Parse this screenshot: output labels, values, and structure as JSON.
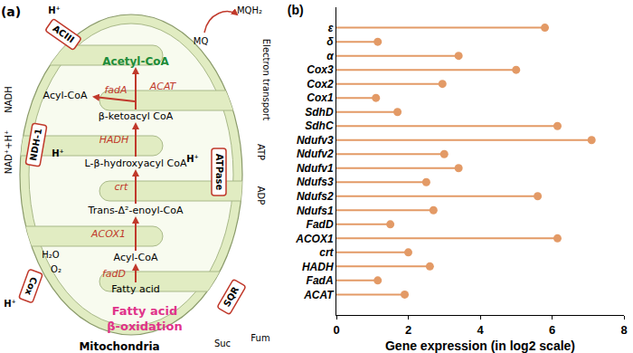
{
  "chart_data": {
    "type": "lollipop",
    "orientation": "horizontal",
    "title": "(b)",
    "x_label": "Gene expression (in log2 scale)",
    "categories": [
      "ε",
      "δ",
      "α",
      "Cox3",
      "Cox2",
      "Cox1",
      "SdhD",
      "SdhC",
      "Ndufv3",
      "Ndufv2",
      "Ndufv1",
      "Ndufs3",
      "Ndufs2",
      "Ndufs1",
      "FadD",
      "ACOX1",
      "crt",
      "HADH",
      "FadA",
      "ACAT"
    ],
    "values": [
      5.8,
      1.15,
      3.4,
      5.0,
      2.95,
      1.1,
      1.7,
      6.15,
      7.1,
      3.0,
      3.4,
      2.5,
      5.6,
      2.7,
      1.5,
      6.15,
      2.0,
      2.6,
      1.15,
      1.9
    ],
    "color": "#e39a66",
    "xlim": [
      0,
      8
    ],
    "xticks": [
      0,
      2,
      4,
      6,
      8
    ],
    "grid": false
  },
  "diagram": {
    "panel_label": "(a)",
    "organelle": "Mitochondria",
    "process": [
      "Fatty acid",
      "β-oxidation"
    ],
    "metabolites": [
      "Fatty acid",
      "Acyl-CoA",
      "Trans-Δ²-enoyl-CoA",
      "L-β-hydroxyacyl CoA",
      "β-ketoacyl CoA",
      "Acyl-CoA",
      "Acetyl-CoA"
    ],
    "enzymes": [
      "fadD",
      "ACOX1",
      "crt",
      "HADH",
      "fadA",
      "ACAT"
    ],
    "complexes": [
      {
        "name": "NDH-1",
        "substrate": "NADH",
        "product": "NAD⁺+H⁺",
        "ion": "H⁺"
      },
      {
        "name": "ACIII",
        "ion": "H⁺"
      },
      {
        "name": "ATPase",
        "substrate": "ADP",
        "product": "ATP",
        "ion": "H⁺"
      },
      {
        "name": "Cox",
        "substrate": "O₂",
        "product": "H₂O",
        "ion": "H⁺"
      },
      {
        "name": "SQR",
        "substrate": "Suc",
        "product": "Fum"
      }
    ],
    "electron_transport": {
      "label": "Electron transport",
      "substrate": "MQ",
      "product": "MQH₂"
    }
  }
}
